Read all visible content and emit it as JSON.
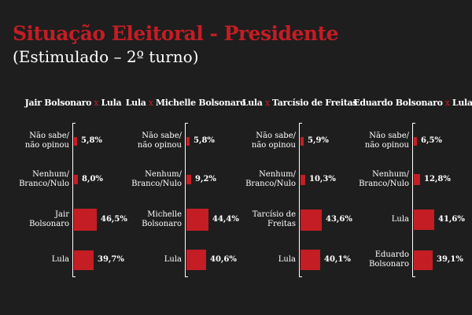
{
  "title": "Situação Eleitoral - Presidente",
  "subtitle": "(Estimulado – 2º turno)",
  "separator": "x",
  "accent_color": "#c41d24",
  "background_color": "#1e1e1e",
  "chart_data": [
    {
      "type": "bar",
      "orientation": "horizontal",
      "title_left": "Jair Bolsonaro",
      "title_right": "Lula",
      "categories": [
        "Não sabe/\nnão opinou",
        "Nenhum/\nBranco/Nulo",
        "Jair\nBolsonaro",
        "Lula"
      ],
      "values": [
        5.8,
        8.0,
        46.5,
        39.7
      ],
      "value_labels": [
        "5,8%",
        "8,0%",
        "46,5%",
        "39,7%"
      ],
      "unit": "%"
    },
    {
      "type": "bar",
      "orientation": "horizontal",
      "title_left": "Lula",
      "title_right": "Michelle Bolsonaro",
      "categories": [
        "Não sabe/\nnão opinou",
        "Nenhum/\nBranco/Nulo",
        "Michelle\nBolsonaro",
        "Lula"
      ],
      "values": [
        5.8,
        9.2,
        44.4,
        40.6
      ],
      "value_labels": [
        "5,8%",
        "9,2%",
        "44,4%",
        "40,6%"
      ],
      "unit": "%"
    },
    {
      "type": "bar",
      "orientation": "horizontal",
      "title_left": "Lula",
      "title_right": "Tarcísio de Freitas",
      "categories": [
        "Não sabe/\nnão opinou",
        "Nenhum/\nBranco/Nulo",
        "Tarcísio de\nFreitas",
        "Lula"
      ],
      "values": [
        5.9,
        10.3,
        43.6,
        40.1
      ],
      "value_labels": [
        "5,9%",
        "10,3%",
        "43,6%",
        "40,1%"
      ],
      "unit": "%"
    },
    {
      "type": "bar",
      "orientation": "horizontal",
      "title_left": "Eduardo Bolsonaro",
      "title_right": "Lula",
      "categories": [
        "Não sabe/\nnão opinou",
        "Nenhum/\nBranco/Nulo",
        "Lula",
        "Eduardo\nBolsonaro"
      ],
      "values": [
        6.5,
        12.8,
        41.6,
        39.1
      ],
      "value_labels": [
        "6,5%",
        "12,8%",
        "41,6%",
        "39,1%"
      ],
      "unit": "%"
    }
  ]
}
